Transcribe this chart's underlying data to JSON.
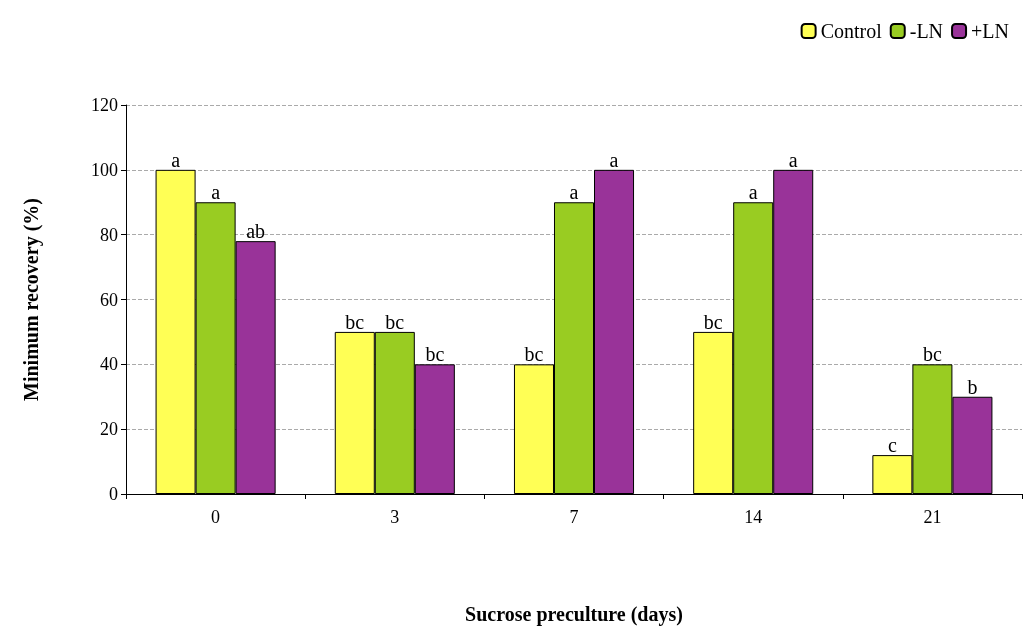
{
  "chart_data": {
    "type": "bar",
    "xlabel": "Sucrose preculture (days)",
    "ylabel": "Minimum recovery (%)",
    "categories": [
      "0",
      "3",
      "7",
      "14",
      "21"
    ],
    "series": [
      {
        "name": "Control",
        "color": "#ffff55",
        "values": [
          100,
          50,
          40,
          50,
          12
        ],
        "value_labels": [
          "a",
          "bc",
          "bc",
          "bc",
          "c"
        ]
      },
      {
        "name": "-LN",
        "color": "#99cc22",
        "values": [
          90,
          50,
          90,
          90,
          40
        ],
        "value_labels": [
          "a",
          "bc",
          "a",
          "a",
          "bc"
        ]
      },
      {
        "name": "+LN",
        "color": "#993399",
        "values": [
          78,
          40,
          100,
          100,
          30
        ],
        "value_labels": [
          "ab",
          "bc",
          "a",
          "a",
          "b"
        ]
      }
    ],
    "ylim": [
      0,
      120
    ],
    "yticks": [
      0,
      20,
      40,
      60,
      80,
      100,
      120
    ],
    "grid": "y",
    "legend": "top right"
  }
}
